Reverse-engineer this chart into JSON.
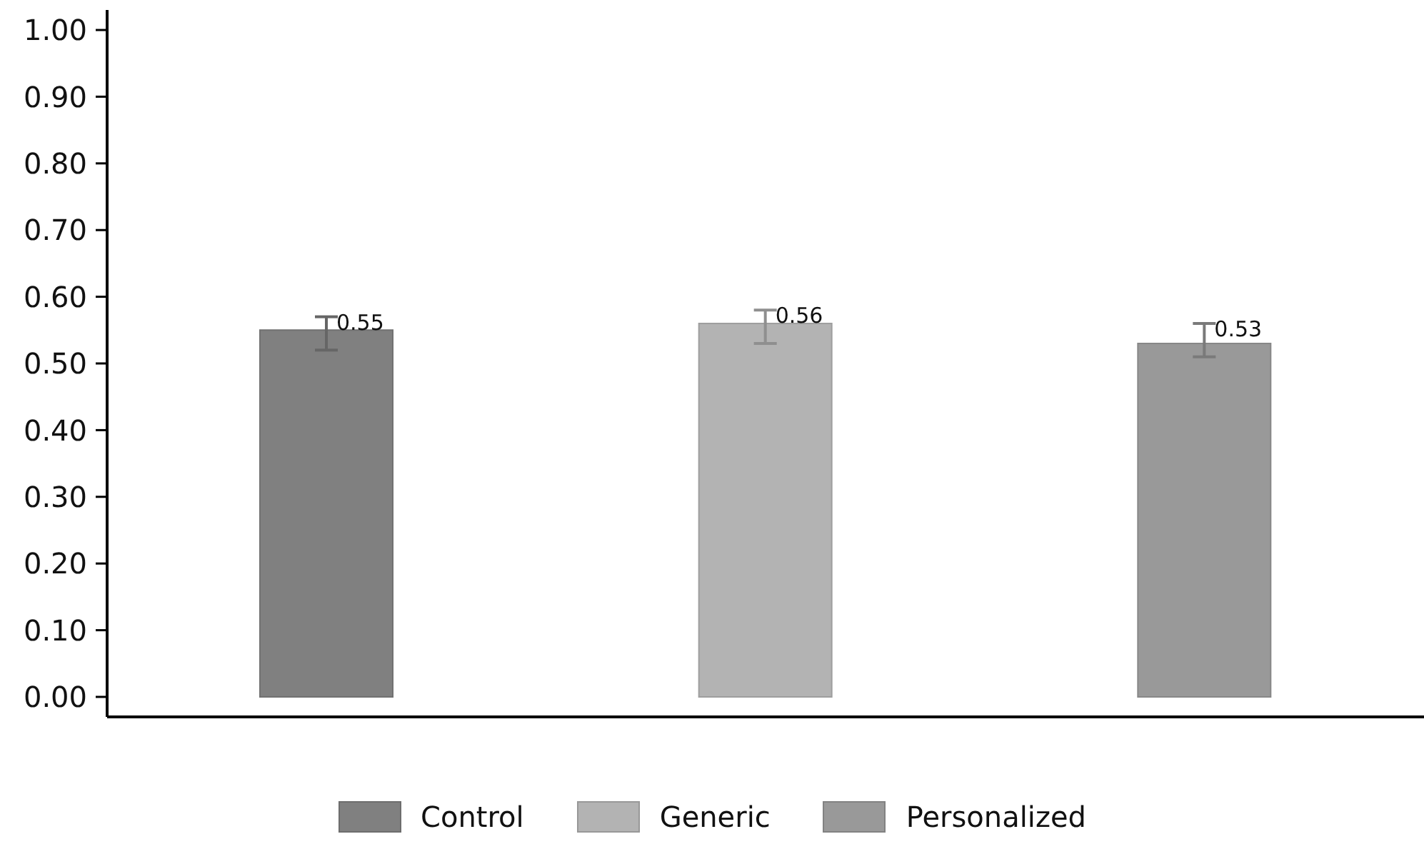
{
  "chart_data": {
    "type": "bar",
    "categories": [
      null,
      null,
      null
    ],
    "series": [
      {
        "name": "Control",
        "color": "#808080",
        "values": [
          0.55,
          null,
          null
        ],
        "errors": [
          [
            0.52,
            0.57
          ],
          null,
          null
        ]
      },
      {
        "name": "Generic",
        "color": "#b3b3b3",
        "values": [
          null,
          0.56,
          null
        ],
        "errors": [
          null,
          [
            0.53,
            0.58
          ],
          null
        ]
      },
      {
        "name": "Personalized",
        "color": "#999999",
        "values": [
          null,
          null,
          0.53
        ],
        "errors": [
          null,
          null,
          [
            0.51,
            0.56
          ]
        ]
      }
    ],
    "ylim": [
      -0.03,
      1.03
    ],
    "yticks": [
      {
        "value": 0,
        "label": "0.00"
      },
      {
        "value": 0.1,
        "label": "0.10"
      },
      {
        "value": 0.2,
        "label": "0.20"
      },
      {
        "value": 0.3,
        "label": "0.30"
      },
      {
        "value": 0.4,
        "label": "0.40"
      },
      {
        "value": 0.5,
        "label": "0.50"
      },
      {
        "value": 0.6,
        "label": "0.60"
      },
      {
        "value": 0.7,
        "label": "0.70"
      },
      {
        "value": 0.8,
        "label": "0.80"
      },
      {
        "value": 0.9,
        "label": "0.90"
      },
      {
        "value": 1,
        "label": "1.00"
      }
    ],
    "legend": "bottom",
    "data_labels": true
  }
}
